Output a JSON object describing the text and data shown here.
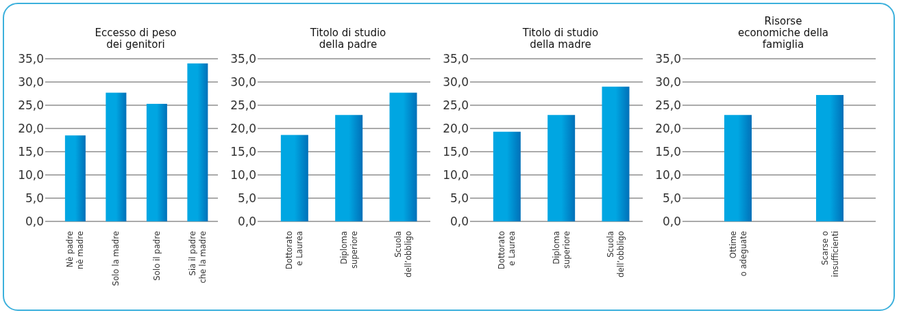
{
  "chart_data": [
    {
      "type": "bar",
      "title": "Eccesso di peso\ndei genitori",
      "categories": [
        "Nè padre\nnè madre",
        "Solo la madre",
        "Solo il padre",
        "Sia il padre\nche la madre"
      ],
      "values": [
        18.5,
        27.7,
        25.3,
        34.0
      ],
      "color": "#00a6e2",
      "ylim": [
        0,
        35
      ],
      "yticks": [
        {
          "value": 0,
          "label": "0,0"
        },
        {
          "value": 5,
          "label": "5,0"
        },
        {
          "value": 10,
          "label": "10,0"
        },
        {
          "value": 15,
          "label": "15,0"
        },
        {
          "value": 20,
          "label": "20,0"
        },
        {
          "value": 25,
          "label": "25,0"
        },
        {
          "value": 30,
          "label": "30,0"
        },
        {
          "value": 35,
          "label": "35,0"
        }
      ],
      "grid": "y"
    },
    {
      "type": "bar",
      "title": "Titolo di studio\ndella padre",
      "categories": [
        "Dottorato\ne Laurea",
        "Diploma\nsuperiore",
        "Scuola\ndell’obbligo"
      ],
      "values": [
        18.6,
        22.9,
        27.7
      ],
      "color": "#00a6e2",
      "ylim": [
        0,
        35
      ],
      "yticks": [
        {
          "value": 0,
          "label": "0,0"
        },
        {
          "value": 5,
          "label": "5,0"
        },
        {
          "value": 10,
          "label": "10,0"
        },
        {
          "value": 15,
          "label": "15,0"
        },
        {
          "value": 20,
          "label": "20,0"
        },
        {
          "value": 25,
          "label": "25,0"
        },
        {
          "value": 30,
          "label": "30,0"
        },
        {
          "value": 35,
          "label": "35,0"
        }
      ],
      "grid": "y"
    },
    {
      "type": "bar",
      "title": "Titolo di studio\ndella madre",
      "categories": [
        "Dottorato\ne Laurea",
        "Diploma\nsuperiore",
        "Scuola\ndell’obbligo"
      ],
      "values": [
        19.3,
        22.9,
        29.0
      ],
      "color": "#00a6e2",
      "ylim": [
        0,
        35
      ],
      "yticks": [
        {
          "value": 0,
          "label": "0,0"
        },
        {
          "value": 5,
          "label": "5,0"
        },
        {
          "value": 10,
          "label": "10,0"
        },
        {
          "value": 15,
          "label": "15,0"
        },
        {
          "value": 20,
          "label": "20,0"
        },
        {
          "value": 25,
          "label": "25,0"
        },
        {
          "value": 30,
          "label": "30,0"
        },
        {
          "value": 35,
          "label": "35,0"
        }
      ],
      "grid": "y"
    },
    {
      "type": "bar",
      "title": "Risorse\neconomiche della\nfamiglia",
      "categories": [
        "Ottime\no adeguate",
        "Scarse o\ninsufficienti"
      ],
      "values": [
        22.9,
        27.2
      ],
      "color": "#00a6e2",
      "ylim": [
        0,
        35
      ],
      "yticks": [
        {
          "value": 0,
          "label": "0,0"
        },
        {
          "value": 5,
          "label": "5,0"
        },
        {
          "value": 10,
          "label": "10,0"
        },
        {
          "value": 15,
          "label": "15,0"
        },
        {
          "value": 20,
          "label": "20,0"
        },
        {
          "value": 25,
          "label": "25,0"
        },
        {
          "value": 30,
          "label": "30,0"
        },
        {
          "value": 35,
          "label": "35,0"
        }
      ],
      "grid": "y"
    }
  ]
}
